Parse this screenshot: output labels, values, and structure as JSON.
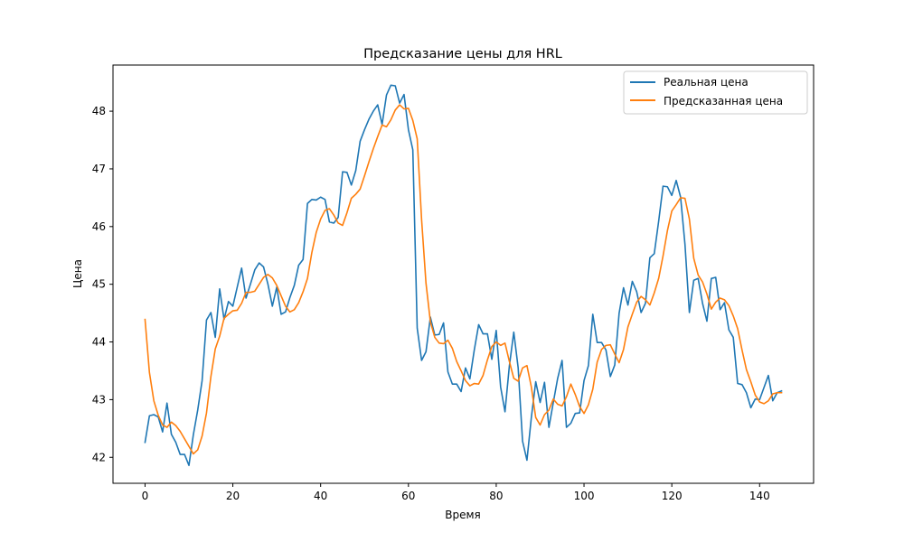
{
  "chart_data": {
    "type": "line",
    "title": "Предсказание цены для HRL",
    "xlabel": "Время",
    "ylabel": "Цена",
    "xlim": [
      -7.3,
      152.3
    ],
    "ylim": [
      41.55,
      48.8
    ],
    "x_ticks": [
      0,
      20,
      40,
      60,
      80,
      100,
      120,
      140
    ],
    "y_ticks": [
      42,
      43,
      44,
      45,
      46,
      47,
      48
    ],
    "grid": false,
    "legend_position": "top-right",
    "series": [
      {
        "name": "Реальная цена",
        "color": "#1f77b4",
        "values": [
          42.26,
          42.72,
          42.74,
          42.7,
          42.44,
          42.94,
          42.4,
          42.26,
          42.05,
          42.05,
          41.86,
          42.39,
          42.82,
          43.33,
          44.38,
          44.51,
          44.08,
          44.92,
          44.39,
          44.7,
          44.62,
          44.95,
          45.28,
          44.76,
          45.0,
          45.25,
          45.37,
          45.3,
          45.0,
          44.62,
          44.95,
          44.48,
          44.52,
          44.77,
          44.98,
          45.33,
          45.43,
          46.4,
          46.47,
          46.46,
          46.51,
          46.47,
          46.08,
          46.06,
          46.16,
          46.95,
          46.94,
          46.72,
          46.97,
          47.48,
          47.68,
          47.86,
          48.0,
          48.11,
          47.77,
          48.28,
          48.45,
          48.44,
          48.14,
          48.29,
          47.68,
          47.33,
          44.24,
          43.68,
          43.83,
          44.43,
          44.12,
          44.13,
          44.33,
          43.48,
          43.27,
          43.27,
          43.14,
          43.55,
          43.36,
          43.86,
          44.3,
          44.14,
          44.14,
          43.7,
          44.2,
          43.22,
          42.79,
          43.59,
          44.17,
          43.55,
          42.28,
          41.95,
          42.69,
          43.31,
          42.95,
          43.3,
          42.52,
          42.95,
          43.37,
          43.68,
          42.52,
          42.59,
          42.76,
          42.77,
          43.33,
          43.59,
          44.48,
          43.99,
          43.99,
          43.86,
          43.4,
          43.6,
          44.5,
          44.94,
          44.64,
          45.05,
          44.87,
          44.51,
          44.67,
          45.46,
          45.53,
          46.09,
          46.7,
          46.69,
          46.54,
          46.8,
          46.51,
          45.69,
          44.51,
          45.07,
          45.1,
          44.67,
          44.36,
          45.1,
          45.12,
          44.56,
          44.68,
          44.21,
          44.08,
          43.28,
          43.26,
          43.12,
          42.86,
          43.01,
          43.0,
          43.21,
          43.42,
          42.98,
          43.12,
          43.15
        ]
      },
      {
        "name": "Предсказанная цена",
        "color": "#ff7f0e",
        "values": [
          44.39,
          43.47,
          42.98,
          42.73,
          42.56,
          42.52,
          42.61,
          42.55,
          42.45,
          42.32,
          42.19,
          42.06,
          42.13,
          42.37,
          42.77,
          43.4,
          43.88,
          44.1,
          44.41,
          44.48,
          44.54,
          44.55,
          44.67,
          44.86,
          44.86,
          44.88,
          45.0,
          45.12,
          45.17,
          45.11,
          44.98,
          44.8,
          44.62,
          44.52,
          44.56,
          44.68,
          44.87,
          45.1,
          45.55,
          45.9,
          46.13,
          46.28,
          46.31,
          46.2,
          46.06,
          46.02,
          46.24,
          46.49,
          46.56,
          46.65,
          46.88,
          47.12,
          47.35,
          47.56,
          47.76,
          47.73,
          47.85,
          48.02,
          48.11,
          48.04,
          48.05,
          47.84,
          47.52,
          46.12,
          45.02,
          44.35,
          44.08,
          43.98,
          43.97,
          44.03,
          43.89,
          43.66,
          43.5,
          43.33,
          43.24,
          43.28,
          43.27,
          43.42,
          43.69,
          43.92,
          44.0,
          43.94,
          43.98,
          43.66,
          43.37,
          43.32,
          43.55,
          43.59,
          43.22,
          42.69,
          42.56,
          42.74,
          42.82,
          43.01,
          42.92,
          42.89,
          43.05,
          43.27,
          43.09,
          42.88,
          42.76,
          42.91,
          43.18,
          43.65,
          43.87,
          43.94,
          43.95,
          43.79,
          43.64,
          43.87,
          44.26,
          44.48,
          44.69,
          44.79,
          44.73,
          44.64,
          44.85,
          45.1,
          45.49,
          45.93,
          46.27,
          46.38,
          46.5,
          46.49,
          46.13,
          45.45,
          45.16,
          45.04,
          44.83,
          44.57,
          44.69,
          44.76,
          44.73,
          44.63,
          44.45,
          44.23,
          43.86,
          43.52,
          43.31,
          43.08,
          42.96,
          42.93,
          42.98,
          43.1,
          43.12,
          43.12
        ]
      }
    ]
  }
}
